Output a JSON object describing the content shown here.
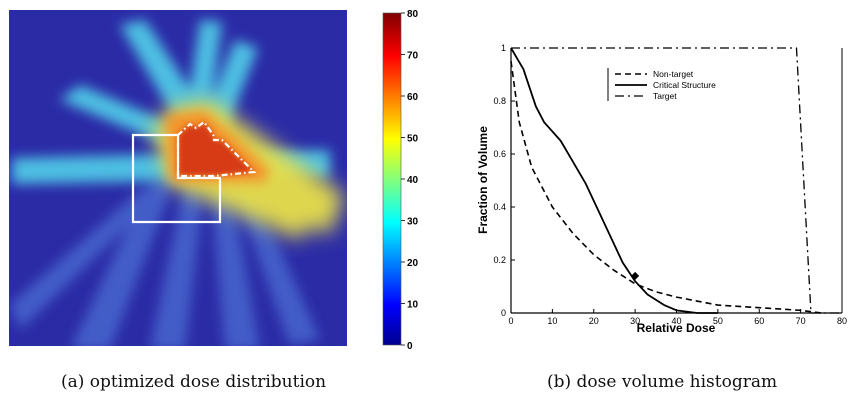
{
  "captions": {
    "a": "(a) optimized dose distribution",
    "b": "(b) dose volume histogram"
  },
  "chart_data": [
    {
      "type": "heatmap",
      "title": "",
      "colorbar": {
        "ticks": [
          "0",
          "10",
          "20",
          "30",
          "40",
          "50",
          "60",
          "70",
          "80"
        ],
        "min": 0,
        "max": 80,
        "colormap": "jet"
      },
      "colors": {
        "background": "#2a2aa8",
        "hot": "#d63a16"
      }
    },
    {
      "type": "line",
      "title": "",
      "xlabel": "Relative Dose",
      "ylabel": "Fraction of Volume",
      "xlim": [
        0,
        80
      ],
      "ylim": [
        0,
        1
      ],
      "xticks": [
        "0",
        "10",
        "20",
        "30",
        "40",
        "50",
        "60",
        "70",
        "80"
      ],
      "yticks": [
        "0",
        "0.2",
        "0.4",
        "0.6",
        "0.8",
        "1"
      ],
      "legend_position": "top-center",
      "series": [
        {
          "name": "Non-target",
          "style": "dashed",
          "x": [
            0,
            2,
            5,
            10,
            15,
            20,
            25,
            30,
            35,
            40,
            50,
            60,
            70,
            75
          ],
          "y": [
            0.95,
            0.72,
            0.55,
            0.4,
            0.3,
            0.22,
            0.16,
            0.11,
            0.08,
            0.06,
            0.03,
            0.02,
            0.01,
            0.0
          ]
        },
        {
          "name": "Critical Structure",
          "style": "solid",
          "x": [
            0,
            3,
            6,
            8,
            12,
            15,
            18,
            21,
            24,
            27,
            30,
            33,
            37,
            40,
            45,
            50
          ],
          "y": [
            1.0,
            0.92,
            0.78,
            0.72,
            0.65,
            0.57,
            0.49,
            0.39,
            0.29,
            0.19,
            0.12,
            0.07,
            0.03,
            0.01,
            0.0,
            0.0
          ]
        },
        {
          "name": "Target",
          "style": "dashdot",
          "x": [
            0,
            10,
            20,
            30,
            40,
            50,
            60,
            69,
            72.5,
            80
          ],
          "y": [
            1,
            1,
            1,
            1,
            1,
            1,
            1,
            1,
            0.0,
            0.0
          ]
        }
      ],
      "annotations": [
        {
          "type": "marker",
          "shape": "diamond",
          "x": 30,
          "y": 0.14
        }
      ]
    }
  ]
}
